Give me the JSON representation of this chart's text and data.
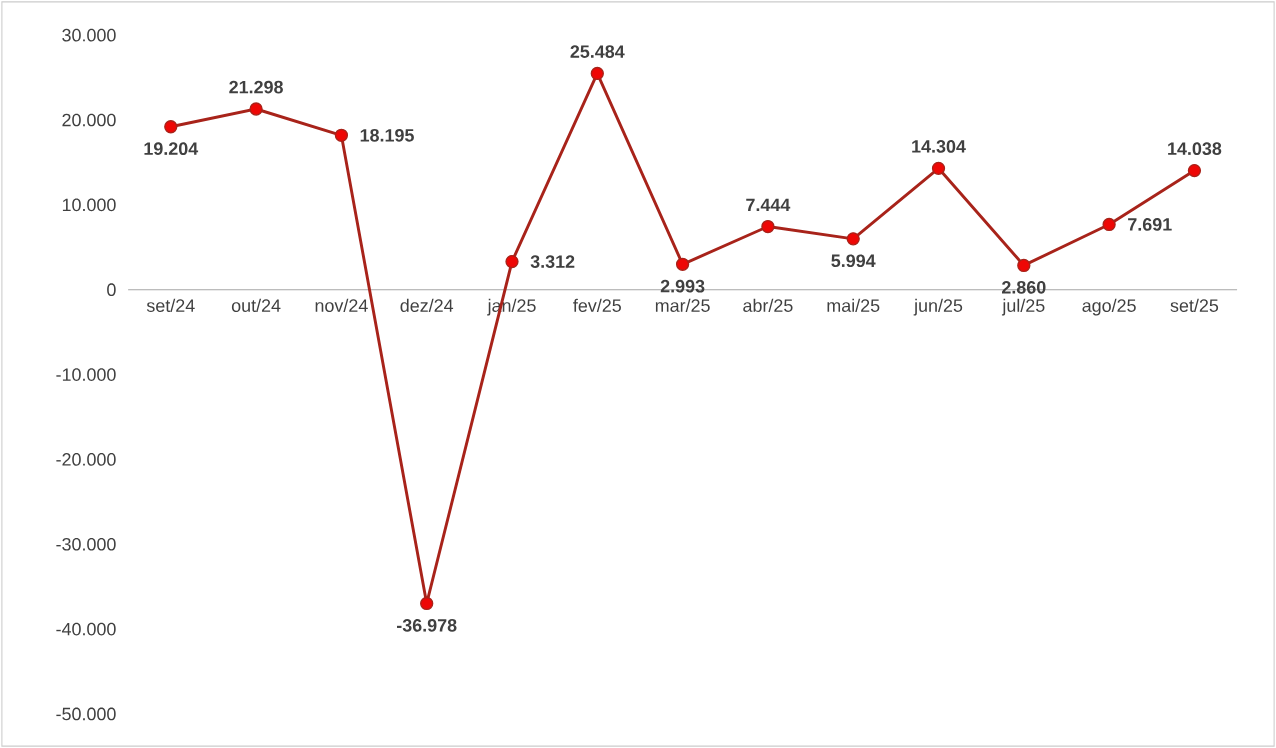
{
  "chart_data": {
    "type": "line",
    "categories": [
      "set/24",
      "out/24",
      "nov/24",
      "dez/24",
      "jan/25",
      "fev/25",
      "mar/25",
      "abr/25",
      "mai/25",
      "jun/25",
      "jul/25",
      "ago/25",
      "set/25"
    ],
    "series": [
      {
        "color": "#a8231a",
        "values": [
          19204,
          21298,
          18195,
          -36978,
          3312,
          25484,
          2993,
          7444,
          5994,
          14304,
          2860,
          7691,
          14038
        ],
        "value_labels": [
          "19.204",
          "21.298",
          "18.195",
          "-36.978",
          "3.312",
          "25.484",
          "2.993",
          "7.444",
          "5.994",
          "14.304",
          "2.860",
          "7.691",
          "14.038"
        ]
      }
    ],
    "ylim": [
      -50000,
      30000
    ],
    "yticks": [
      {
        "value": -50000,
        "label": "-50.000"
      },
      {
        "value": -40000,
        "label": "-40.000"
      },
      {
        "value": -30000,
        "label": "-30.000"
      },
      {
        "value": -20000,
        "label": "-20.000"
      },
      {
        "value": -10000,
        "label": "-10.000"
      },
      {
        "value": 0,
        "label": "0"
      },
      {
        "value": 10000,
        "label": "10.000"
      },
      {
        "value": 20000,
        "label": "20.000"
      },
      {
        "value": 30000,
        "label": "30.000"
      }
    ],
    "marker": "circle",
    "line_style": "solid"
  }
}
